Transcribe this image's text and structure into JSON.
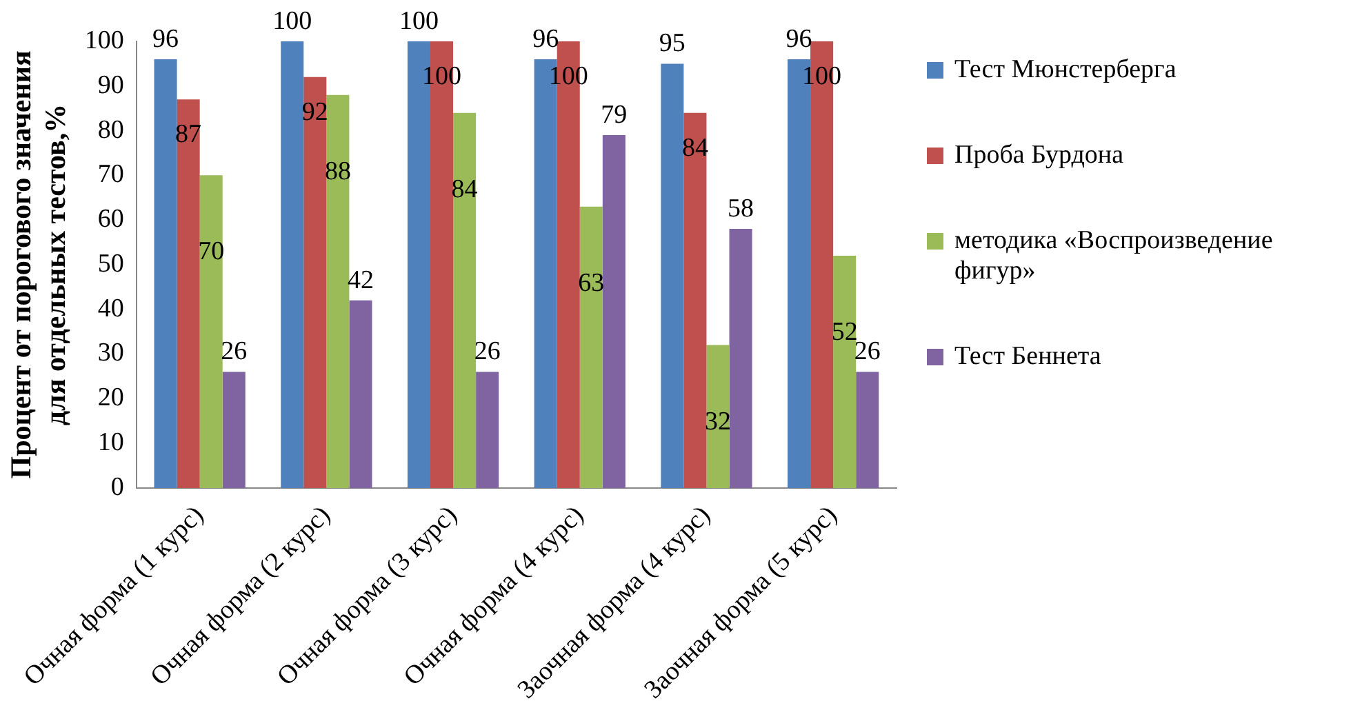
{
  "chart_data": {
    "type": "bar",
    "ylabel": "Процент от порогового значения для отдельных тестов,%",
    "categories": [
      "Очная форма (1 курс)",
      "Очная форма (2 курс)",
      "Очная форма (3 курс)",
      "Очная форма (4 курс)",
      "Заочная форма (4 курс)",
      "Заочная форма (5 курс)"
    ],
    "series": [
      {
        "name": "Тест  Мюнстерберга",
        "color": "#4f81bd",
        "values": [
          96,
          100,
          100,
          96,
          95,
          96
        ]
      },
      {
        "name": "Проба Бурдона",
        "color": "#c0504d",
        "values": [
          87,
          92,
          100,
          100,
          84,
          100
        ]
      },
      {
        "name": "методика «Воспроизведение фигур»",
        "color": "#9bbb59",
        "values": [
          70,
          88,
          84,
          63,
          32,
          52
        ]
      },
      {
        "name": "Тест Беннета",
        "color": "#8064a2",
        "values": [
          26,
          42,
          26,
          79,
          58,
          26
        ]
      }
    ],
    "ylim": [
      0,
      100
    ],
    "yticks": [
      0,
      10,
      20,
      30,
      40,
      50,
      60,
      70,
      80,
      90,
      100
    ],
    "grid": false,
    "legend": "right",
    "data_labels": true
  }
}
